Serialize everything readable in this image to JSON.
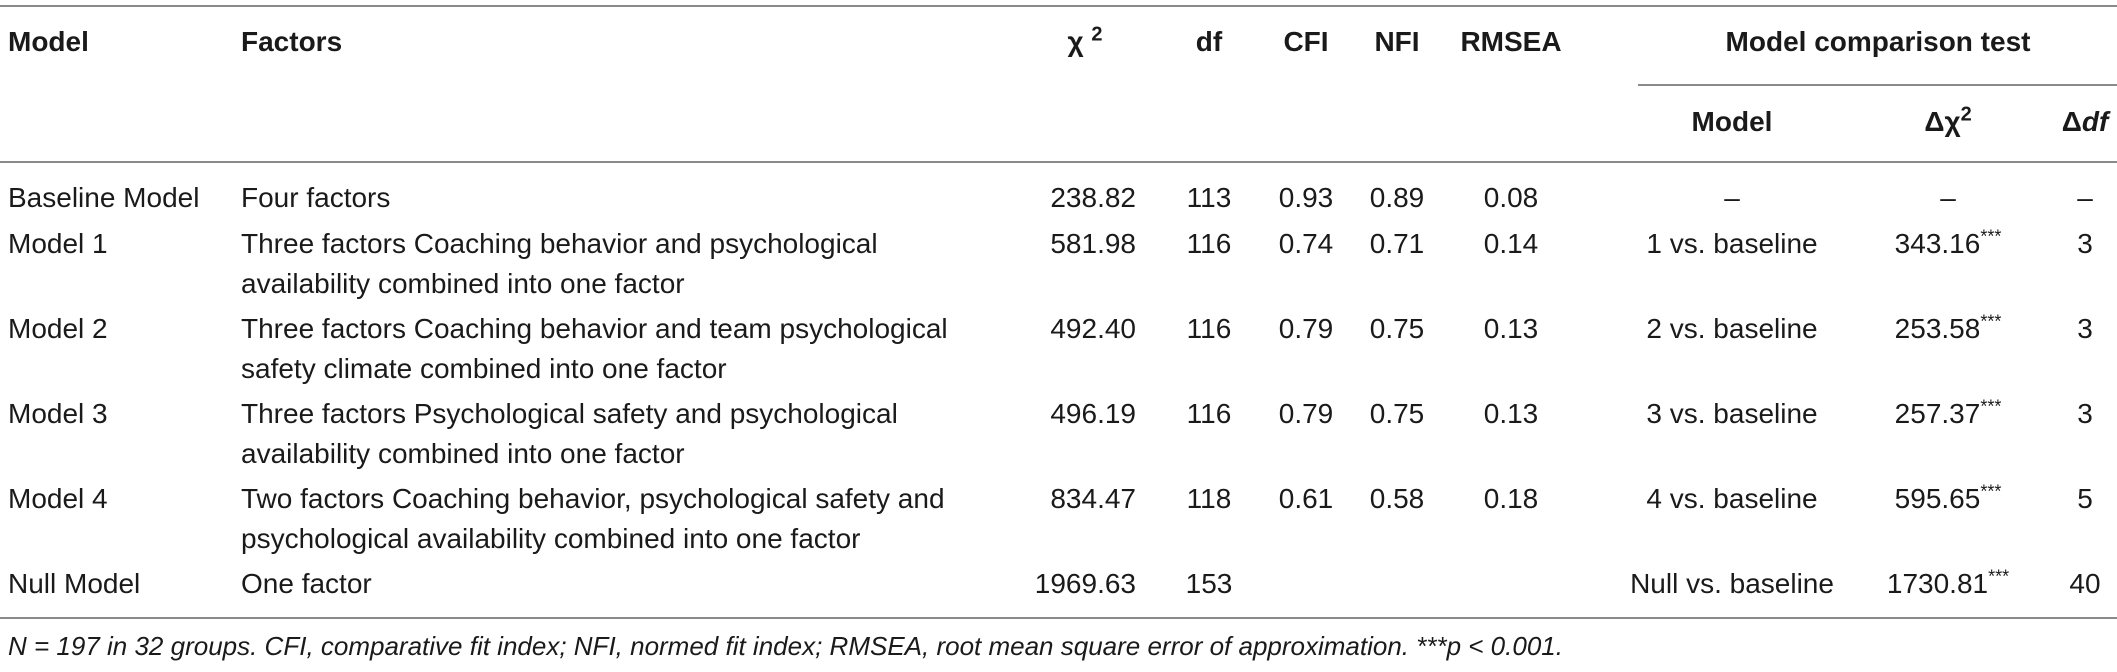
{
  "headers": {
    "model": "Model",
    "factors": "Factors",
    "chi2": "χ",
    "chi2_sup": "2",
    "df": "df",
    "cfi": "CFI",
    "nfi": "NFI",
    "rmsea": "RMSEA",
    "comparison_group": "Model comparison test",
    "comp_model": "Model",
    "delta_chi2": "Δχ",
    "delta_chi2_sup": "2",
    "delta_df_prefix": "Δ",
    "delta_df_ital": "df"
  },
  "rows": [
    {
      "model": "Baseline Model",
      "factors_1": "Four factors",
      "factors_2": "",
      "chi2": "238.82",
      "df": "113",
      "cfi": "0.93",
      "nfi": "0.89",
      "rmsea": "0.08",
      "comp": "–",
      "dchi2": "–",
      "dchi2_stars": "",
      "ddf": "–"
    },
    {
      "model": "Model 1",
      "factors_1": "Three factors Coaching behavior and psychological",
      "factors_2": "availability combined into one factor",
      "chi2": "581.98",
      "df": "116",
      "cfi": "0.74",
      "nfi": "0.71",
      "rmsea": "0.14",
      "comp": "1 vs. baseline",
      "dchi2": "343.16",
      "dchi2_stars": "***",
      "ddf": "3"
    },
    {
      "model": "Model 2",
      "factors_1": "Three factors Coaching behavior and team psychological",
      "factors_2": "safety climate combined into one factor",
      "chi2": "492.40",
      "df": "116",
      "cfi": "0.79",
      "nfi": "0.75",
      "rmsea": "0.13",
      "comp": "2 vs. baseline",
      "dchi2": "253.58",
      "dchi2_stars": "***",
      "ddf": "3"
    },
    {
      "model": "Model 3",
      "factors_1": "Three factors Psychological safety and psychological",
      "factors_2": "availability combined into one factor",
      "chi2": "496.19",
      "df": "116",
      "cfi": "0.79",
      "nfi": "0.75",
      "rmsea": "0.13",
      "comp": "3 vs. baseline",
      "dchi2": "257.37",
      "dchi2_stars": "***",
      "ddf": "3"
    },
    {
      "model": "Model 4",
      "factors_1": "Two factors Coaching behavior, psychological safety and",
      "factors_2": "psychological availability combined into one factor",
      "chi2": "834.47",
      "df": "118",
      "cfi": "0.61",
      "nfi": "0.58",
      "rmsea": "0.18",
      "comp": "4 vs. baseline",
      "dchi2": "595.65",
      "dchi2_stars": "***",
      "ddf": "5"
    },
    {
      "model": "Null Model",
      "factors_1": "One factor",
      "factors_2": "",
      "chi2": "1969.63",
      "df": "153",
      "cfi": "",
      "nfi": "",
      "rmsea": "",
      "comp": "Null vs. baseline",
      "dchi2": "1730.81",
      "dchi2_stars": "***",
      "ddf": "40"
    }
  ],
  "footnote": "N = 197 in 32 groups. CFI, comparative fit index; NFI, normed fit index; RMSEA, root mean square error of approximation. ***p < 0.001."
}
